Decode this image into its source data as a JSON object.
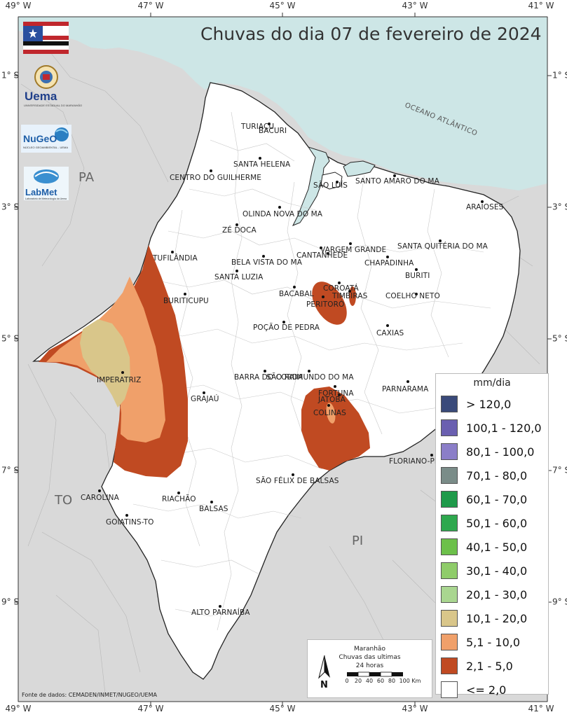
{
  "title": "Chuvas do dia 07 de fevereiro de 2024",
  "longitudes": [
    "49° W",
    "47° W",
    "45° W",
    "43° W",
    "41° W"
  ],
  "latitudes": [
    "1° S",
    "3° S",
    "5° S",
    "7° S",
    "9° S"
  ],
  "states": {
    "pa": "PA",
    "to": "TO",
    "pi": "PI"
  },
  "ocean_label": "OCEANO ATLÂNTICO",
  "logos": {
    "uema": "Uema",
    "uema_sub": "UNIVERSIDADE ESTADUAL DO MARANHÃO",
    "nugeo": "NuGeO",
    "nugeo_sub": "NÚCLEO GEOAMBIENTAL - UEMA",
    "labmet": "LabMet",
    "labmet_sub": "Laboratório de Meteorologia da Uema"
  },
  "cities": [
    {
      "name": "TURIAÇU"
    },
    {
      "name": "BACURI"
    },
    {
      "name": "SANTA HELENA"
    },
    {
      "name": "CENTRO DO GUILHERME"
    },
    {
      "name": "SÃO LUÍS"
    },
    {
      "name": "SANTO AMARO DO MA"
    },
    {
      "name": "ARAIOSES"
    },
    {
      "name": "OLINDA NOVA DO MA"
    },
    {
      "name": "ZÉ DOCA"
    },
    {
      "name": "VARGEM GRANDE"
    },
    {
      "name": "SANTA QUITÉRIA DO MA"
    },
    {
      "name": "TUFILÂNDIA"
    },
    {
      "name": "CANTANHEDE"
    },
    {
      "name": "BELA VISTA DO MA"
    },
    {
      "name": "CHAPADINHA"
    },
    {
      "name": "BURITI"
    },
    {
      "name": "SANTA LUZIA"
    },
    {
      "name": "BURITICUPU"
    },
    {
      "name": "BACABAL"
    },
    {
      "name": "COROATÁ"
    },
    {
      "name": "TIMBIRAS"
    },
    {
      "name": "PERITORÓ"
    },
    {
      "name": "COELHO NETO"
    },
    {
      "name": "POÇÃO DE PEDRA"
    },
    {
      "name": "CAXIAS"
    },
    {
      "name": "IMPERATRIZ"
    },
    {
      "name": "BARRA DO CORDA"
    },
    {
      "name": "SÃO RAIMUNDO DO MA"
    },
    {
      "name": "FORTUNA"
    },
    {
      "name": "JATOBÁ"
    },
    {
      "name": "COLINAS"
    },
    {
      "name": "GRAJAÚ"
    },
    {
      "name": "PARNARAMA"
    },
    {
      "name": "FLORIANO-PI"
    },
    {
      "name": "SÃO FÉLIX DE BALSAS"
    },
    {
      "name": "CAROLINA"
    },
    {
      "name": "RIACHÃO"
    },
    {
      "name": "BALSAS"
    },
    {
      "name": "GOIATINS-TO"
    },
    {
      "name": "ALTO PARNAÍBA"
    }
  ],
  "legend": {
    "title": "mm/dia",
    "items": [
      {
        "label": "> 120,0",
        "color": "#3a4a7a"
      },
      {
        "label": "100,1 - 120,0",
        "color": "#6a5fb0"
      },
      {
        "label": "80,1 - 100,0",
        "color": "#8b7ec8"
      },
      {
        "label": "70,1 - 80,0",
        "color": "#7a8c88"
      },
      {
        "label": "60,1 - 70,0",
        "color": "#1f9a4a"
      },
      {
        "label": "50,1 - 60,0",
        "color": "#2ea84e"
      },
      {
        "label": "40,1 - 50,0",
        "color": "#6cc04a"
      },
      {
        "label": "30,1 - 40,0",
        "color": "#8fcc6a"
      },
      {
        "label": "20,1 - 30,0",
        "color": "#a9d690"
      },
      {
        "label": "10,1 - 20,0",
        "color": "#d9c68a"
      },
      {
        "label": "5,1 - 10,0",
        "color": "#f0a06a"
      },
      {
        "label": "2,1 - 5,0",
        "color": "#c04a22"
      },
      {
        "label": "<= 2,0",
        "color": "#ffffff"
      }
    ]
  },
  "scale_box": {
    "line1": "Maranhão",
    "line2": "Chuvas das ultimas",
    "line3": "24 horas",
    "north": "N",
    "ticks": [
      "0",
      "20",
      "40",
      "60",
      "80",
      "100 Km"
    ]
  },
  "source": "Fonte de dados: CEMADEN/INMET/NUGEO/UEMA",
  "colors": {
    "ocean": "#cde6e6",
    "neighbor": "#d8d8d8",
    "state_fill": "#ffffff"
  }
}
